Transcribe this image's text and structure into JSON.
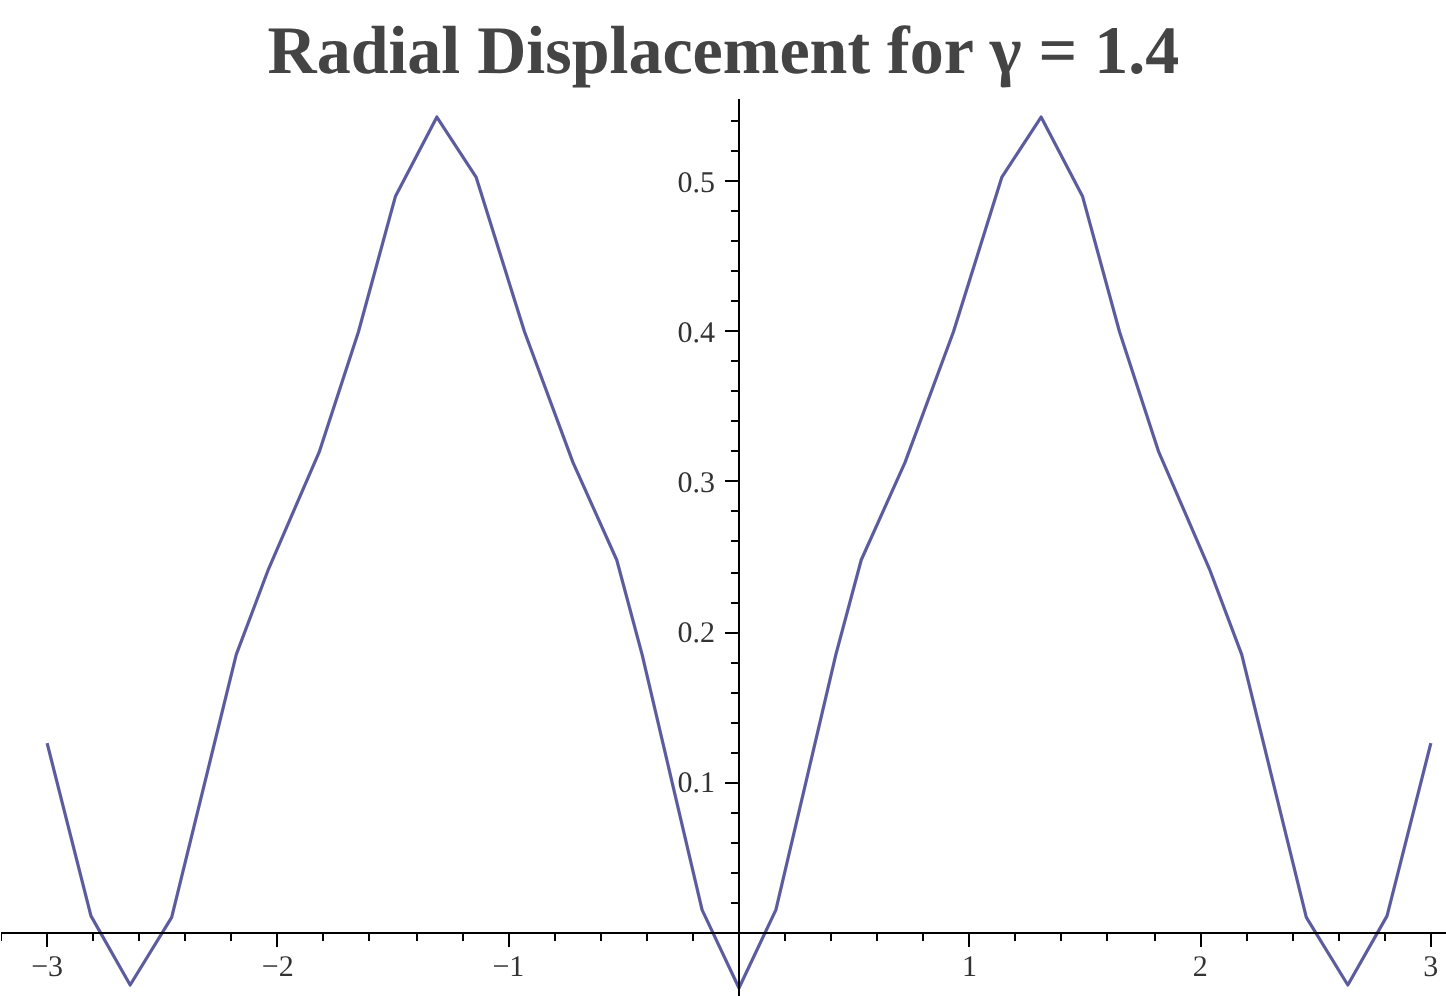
{
  "chart_data": {
    "type": "line",
    "title": "Radial Displacement for γ = 1.4",
    "x": [
      -3,
      -2.81,
      -2.64,
      -2.46,
      -2.18,
      -2.04,
      -1.82,
      -1.65,
      -1.49,
      -1.31,
      -1.14,
      -0.93,
      -0.72,
      -0.53,
      -0.42,
      -0.29,
      -0.16,
      0,
      0.16,
      0.29,
      0.42,
      0.53,
      0.72,
      0.93,
      1.14,
      1.31,
      1.49,
      1.65,
      1.82,
      2.04,
      2.18,
      2.46,
      2.64,
      2.81,
      3
    ],
    "series": [
      {
        "color": "#5b5b9e",
        "values": [
          0.126,
          0.011,
          -0.035,
          0.01,
          0.185,
          0.242,
          0.32,
          0.4,
          0.49,
          0.543,
          0.503,
          0.4,
          0.313,
          0.248,
          0.185,
          0.1,
          0.015,
          -0.037,
          0.015,
          0.1,
          0.185,
          0.248,
          0.313,
          0.4,
          0.503,
          0.543,
          0.49,
          0.4,
          0.32,
          0.242,
          0.185,
          0.01,
          -0.035,
          0.011,
          0.126
        ]
      }
    ],
    "xlim": [
      -3.2,
      3.07
    ],
    "ylim": [
      -0.043,
      0.555
    ],
    "xticks": [
      {
        "value": -3,
        "label": "−3"
      },
      {
        "value": -2,
        "label": "−2"
      },
      {
        "value": -1,
        "label": "−1"
      },
      1,
      2,
      3
    ],
    "yticks": [
      0.1,
      0.2,
      0.3,
      0.4,
      0.5
    ],
    "grid": false,
    "marker": "none",
    "line_style": "solid"
  }
}
